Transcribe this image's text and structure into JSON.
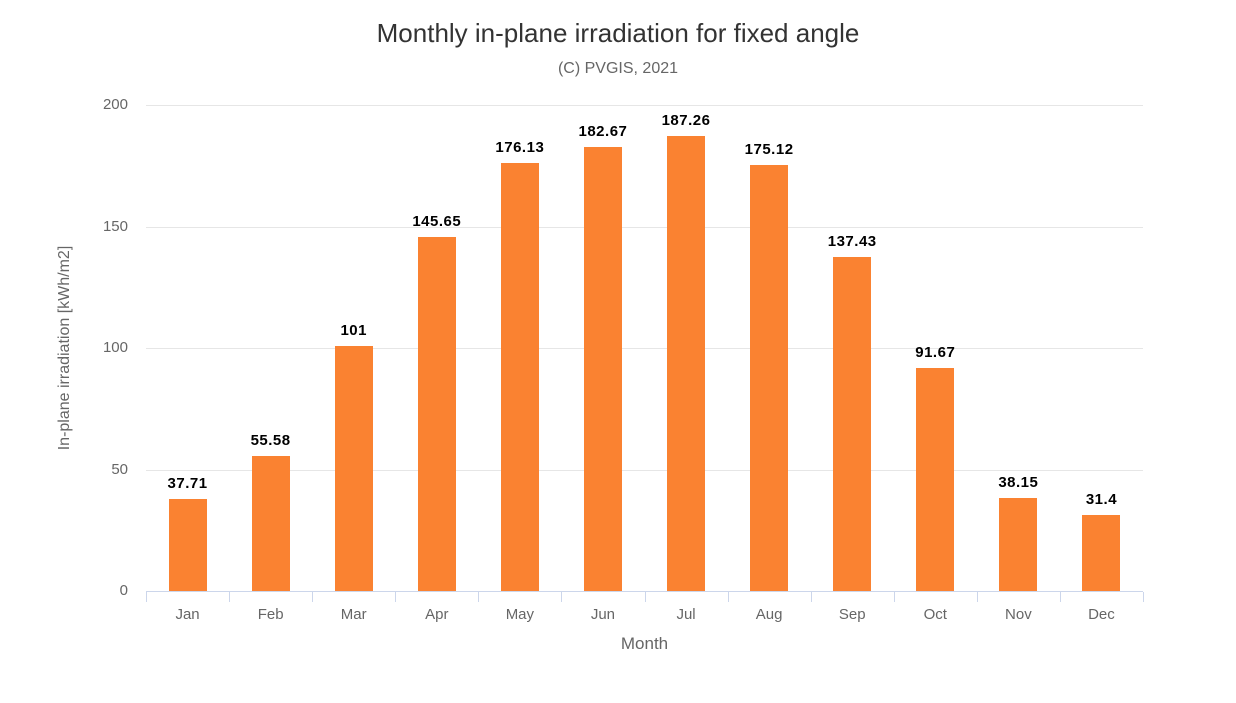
{
  "chart_data": {
    "type": "bar",
    "title": "Monthly in-plane irradiation for fixed angle",
    "subtitle": "(C) PVGIS, 2021",
    "categories": [
      "Jan",
      "Feb",
      "Mar",
      "Apr",
      "May",
      "Jun",
      "Jul",
      "Aug",
      "Sep",
      "Oct",
      "Nov",
      "Dec"
    ],
    "values": [
      37.71,
      55.58,
      101,
      145.65,
      176.13,
      182.67,
      187.26,
      175.12,
      137.43,
      91.67,
      38.15,
      31.4
    ],
    "xlabel": "Month",
    "ylabel": "In-plane irradiation [kWh/m2]",
    "ylim": [
      0,
      200
    ],
    "yticks": [
      0,
      50,
      100,
      150,
      200
    ],
    "grid": true,
    "legend": "none"
  },
  "colors": {
    "bar": "#fa8231",
    "grid": "#e6e6e6",
    "axis_line": "#ccd6eb",
    "tick_label": "#666666",
    "title": "#333333",
    "subtitle": "#666666",
    "data_label": "#000000"
  }
}
